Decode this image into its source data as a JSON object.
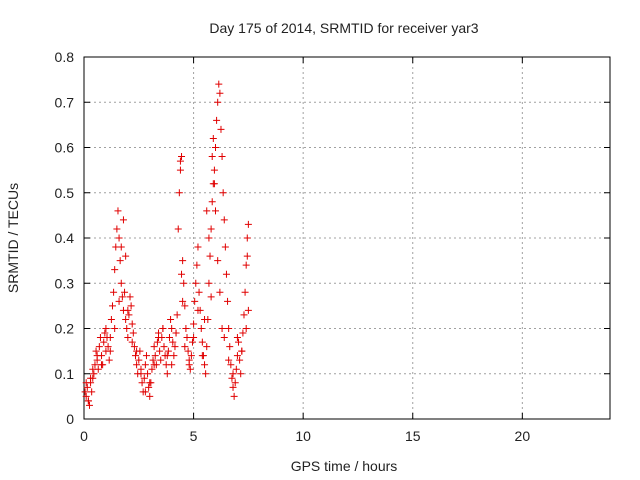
{
  "chart_data": {
    "type": "scatter",
    "title": "Day 175 of 2014, SRMTID for receiver yar3",
    "xlabel": "GPS time / hours",
    "ylabel": "SRMTID / TECUs",
    "xlim": [
      0,
      24
    ],
    "ylim": [
      0,
      0.8
    ],
    "xticks": [
      0,
      5,
      10,
      15,
      20
    ],
    "xtick_labels": [
      "0",
      "5",
      "10",
      "15",
      "20"
    ],
    "yticks": [
      0,
      0.1,
      0.2,
      0.3,
      0.4,
      0.5,
      0.6,
      0.7,
      0.8
    ],
    "ytick_labels": [
      "0",
      "0.1",
      "0.2",
      "0.3",
      "0.4",
      "0.5",
      "0.6",
      "0.7",
      "0.8"
    ],
    "grid": true,
    "marker": "+",
    "series": [
      {
        "name": "SRMTID yar3",
        "color": "#e00000",
        "x": [
          0.05,
          0.1,
          0.15,
          0.2,
          0.25,
          0.3,
          0.35,
          0.4,
          0.45,
          0.5,
          0.55,
          0.6,
          0.65,
          0.7,
          0.75,
          0.8,
          0.85,
          0.9,
          0.95,
          1.0,
          1.05,
          1.1,
          1.15,
          1.2,
          1.25,
          1.3,
          1.35,
          1.4,
          1.45,
          1.5,
          1.55,
          1.6,
          1.65,
          1.7,
          1.75,
          1.8,
          1.85,
          1.9,
          1.95,
          2.0,
          2.05,
          2.1,
          2.15,
          2.2,
          2.25,
          2.3,
          2.35,
          2.4,
          2.45,
          2.5,
          2.55,
          2.6,
          2.65,
          2.7,
          2.75,
          2.8,
          2.85,
          2.9,
          2.95,
          3.0,
          3.05,
          3.1,
          3.15,
          3.2,
          3.25,
          3.3,
          3.35,
          3.4,
          3.45,
          3.5,
          3.55,
          3.6,
          3.65,
          3.7,
          3.75,
          3.8,
          3.85,
          3.9,
          3.95,
          4.0,
          4.05,
          4.1,
          4.15,
          4.2,
          4.25,
          4.3,
          4.35,
          4.4,
          4.45,
          4.5,
          4.55,
          4.6,
          4.65,
          4.7,
          4.75,
          4.8,
          4.85,
          4.9,
          4.95,
          5.0,
          5.05,
          5.1,
          5.15,
          5.2,
          5.25,
          5.3,
          5.35,
          5.4,
          5.45,
          5.5,
          5.55,
          5.6,
          5.65,
          5.7,
          5.75,
          5.8,
          5.85,
          5.9,
          5.95,
          6.0,
          6.05,
          6.1,
          6.15,
          6.2,
          6.25,
          6.3,
          6.35,
          6.4,
          6.45,
          6.5,
          6.55,
          6.6,
          6.65,
          6.7,
          6.75,
          6.8,
          6.85,
          6.9,
          6.95,
          7.0,
          7.05,
          7.1,
          7.15,
          7.2,
          7.25,
          7.3,
          7.35,
          7.4,
          7.45,
          7.5,
          0.1,
          0.2,
          0.3,
          0.4,
          0.6,
          0.8,
          1.0,
          1.2,
          1.4,
          1.6,
          1.7,
          1.8,
          1.9,
          2.0,
          2.2,
          2.4,
          2.6,
          2.8,
          3.0,
          3.2,
          3.4,
          3.6,
          3.8,
          4.0,
          4.2,
          4.4,
          4.45,
          4.5,
          4.6,
          4.8,
          5.0,
          5.2,
          5.4,
          5.5,
          5.6,
          5.7,
          5.8,
          5.85,
          5.9,
          5.95,
          6.0,
          6.1,
          6.2,
          6.3,
          6.4,
          6.6,
          6.8,
          7.0,
          7.2,
          7.4,
          7.45,
          7.5
        ],
        "y": [
          0.06,
          0.05,
          0.07,
          0.04,
          0.03,
          0.08,
          0.06,
          0.09,
          0.1,
          0.12,
          0.15,
          0.13,
          0.11,
          0.16,
          0.18,
          0.14,
          0.12,
          0.17,
          0.19,
          0.2,
          0.18,
          0.16,
          0.13,
          0.15,
          0.22,
          0.25,
          0.28,
          0.33,
          0.38,
          0.42,
          0.46,
          0.4,
          0.35,
          0.3,
          0.27,
          0.24,
          0.28,
          0.22,
          0.2,
          0.18,
          0.23,
          0.27,
          0.25,
          0.21,
          0.19,
          0.16,
          0.14,
          0.12,
          0.1,
          0.13,
          0.15,
          0.11,
          0.08,
          0.06,
          0.09,
          0.12,
          0.14,
          0.1,
          0.07,
          0.05,
          0.08,
          0.11,
          0.13,
          0.16,
          0.14,
          0.12,
          0.17,
          0.19,
          0.15,
          0.13,
          0.18,
          0.2,
          0.16,
          0.14,
          0.12,
          0.1,
          0.15,
          0.18,
          0.22,
          0.2,
          0.17,
          0.14,
          0.16,
          0.19,
          0.23,
          0.42,
          0.5,
          0.55,
          0.58,
          0.35,
          0.3,
          0.25,
          0.2,
          0.18,
          0.15,
          0.13,
          0.11,
          0.14,
          0.17,
          0.21,
          0.26,
          0.3,
          0.34,
          0.38,
          0.28,
          0.24,
          0.2,
          0.17,
          0.14,
          0.12,
          0.1,
          0.16,
          0.22,
          0.3,
          0.36,
          0.42,
          0.48,
          0.52,
          0.55,
          0.6,
          0.66,
          0.7,
          0.74,
          0.72,
          0.64,
          0.58,
          0.5,
          0.44,
          0.38,
          0.32,
          0.26,
          0.2,
          0.16,
          0.12,
          0.09,
          0.07,
          0.05,
          0.08,
          0.11,
          0.14,
          0.17,
          0.13,
          0.1,
          0.15,
          0.19,
          0.23,
          0.28,
          0.34,
          0.4,
          0.43,
          0.08,
          0.04,
          0.09,
          0.11,
          0.14,
          0.12,
          0.15,
          0.18,
          0.2,
          0.26,
          0.38,
          0.44,
          0.36,
          0.24,
          0.17,
          0.15,
          0.1,
          0.06,
          0.08,
          0.12,
          0.18,
          0.2,
          0.14,
          0.12,
          0.19,
          0.57,
          0.32,
          0.26,
          0.16,
          0.12,
          0.18,
          0.24,
          0.14,
          0.22,
          0.46,
          0.4,
          0.27,
          0.58,
          0.62,
          0.52,
          0.46,
          0.35,
          0.28,
          0.2,
          0.18,
          0.13,
          0.1,
          0.18,
          0.15,
          0.2,
          0.36,
          0.24
        ]
      }
    ]
  }
}
